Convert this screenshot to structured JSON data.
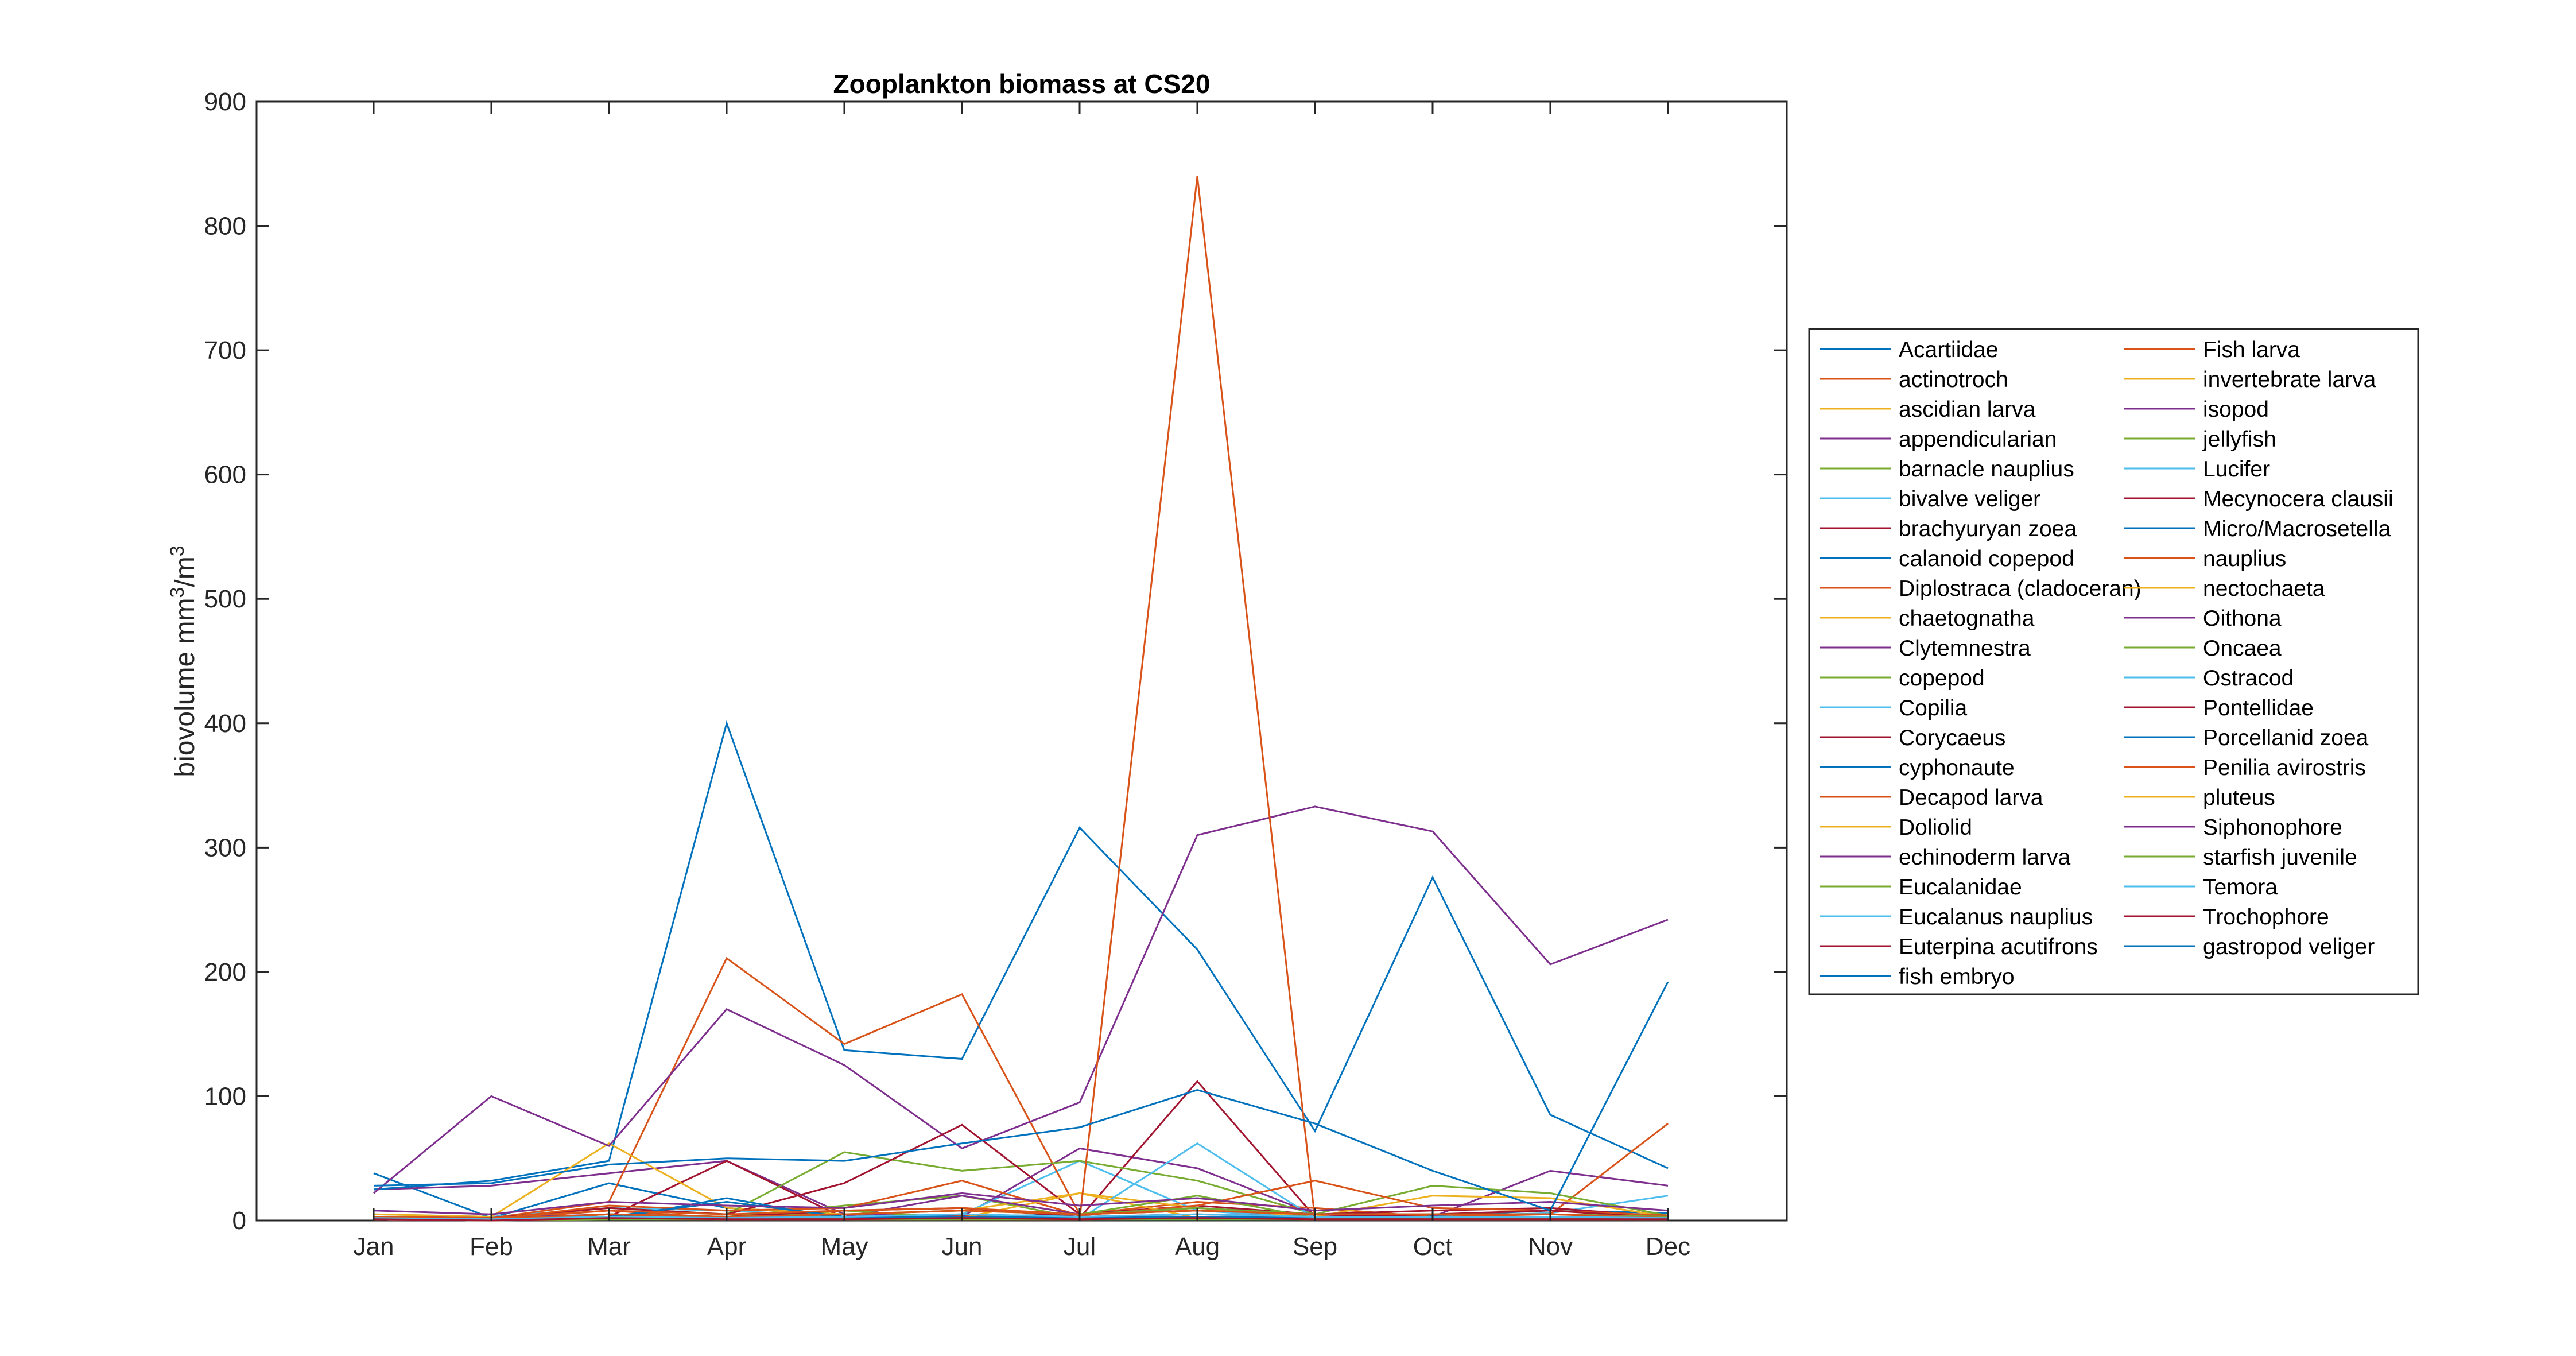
{
  "chart_data": {
    "type": "line",
    "title": "Zooplankton biomass at CS20",
    "xlabel": "",
    "ylabel": "biovolume mm",
    "ylabel_sup1": "3",
    "ylabel_mid": "/m",
    "ylabel_sup2": "3",
    "categories": [
      "Jan",
      "Feb",
      "Mar",
      "Apr",
      "May",
      "Jun",
      "Jul",
      "Aug",
      "Sep",
      "Oct",
      "Nov",
      "Dec"
    ],
    "ylim": [
      0,
      900
    ],
    "yticks": [
      0,
      100,
      200,
      300,
      400,
      500,
      600,
      700,
      800,
      900
    ],
    "grid": false,
    "legend_placement": "right",
    "series": [
      {
        "name": "Acartiidae",
        "color": "#0072BD",
        "values": [
          38,
          2,
          30,
          10,
          5,
          3,
          5,
          8,
          3,
          4,
          8,
          6
        ]
      },
      {
        "name": "actinotroch",
        "color": "#D95319",
        "values": [
          2,
          1,
          8,
          2,
          2,
          4,
          2,
          3,
          2,
          2,
          1,
          1
        ]
      },
      {
        "name": "ascidian larva",
        "color": "#EDB120",
        "values": [
          1,
          0,
          3,
          1,
          1,
          2,
          1,
          2,
          1,
          1,
          1,
          1
        ]
      },
      {
        "name": "appendicularian",
        "color": "#7E2F8E",
        "values": [
          25,
          28,
          38,
          48,
          5,
          3,
          58,
          42,
          5,
          3,
          40,
          28
        ]
      },
      {
        "name": "barnacle nauplius",
        "color": "#77AC30",
        "values": [
          2,
          1,
          5,
          3,
          12,
          20,
          2,
          3,
          2,
          2,
          3,
          2
        ]
      },
      {
        "name": "bivalve veliger",
        "color": "#4DBEEE",
        "values": [
          5,
          3,
          10,
          8,
          3,
          5,
          48,
          8,
          2,
          3,
          6,
          20
        ]
      },
      {
        "name": "brachyuryan zoea",
        "color": "#A2142F",
        "values": [
          2,
          1,
          3,
          48,
          2,
          3,
          2,
          112,
          3,
          2,
          3,
          2
        ]
      },
      {
        "name": "calanoid copepod",
        "color": "#0072BD",
        "values": [
          25,
          32,
          48,
          400,
          137,
          130,
          316,
          218,
          72,
          276,
          85,
          42
        ]
      },
      {
        "name": "Diplostraca (cladoceran)",
        "color": "#D95319",
        "values": [
          3,
          2,
          15,
          211,
          142,
          182,
          5,
          15,
          10,
          3,
          5,
          78
        ]
      },
      {
        "name": "chaetognatha",
        "color": "#EDB120",
        "values": [
          5,
          3,
          62,
          10,
          5,
          8,
          22,
          10,
          3,
          20,
          18,
          3
        ]
      },
      {
        "name": "Clytemnestra",
        "color": "#7E2F8E",
        "values": [
          22,
          100,
          60,
          170,
          125,
          58,
          95,
          310,
          333,
          313,
          206,
          242
        ]
      },
      {
        "name": "copepod",
        "color": "#77AC30",
        "values": [
          3,
          2,
          10,
          5,
          55,
          40,
          48,
          32,
          5,
          28,
          22,
          4
        ]
      },
      {
        "name": "Copilia",
        "color": "#4DBEEE",
        "values": [
          1,
          0,
          2,
          1,
          1,
          2,
          1,
          62,
          2,
          1,
          1,
          1
        ]
      },
      {
        "name": "Corycaeus",
        "color": "#A2142F",
        "values": [
          3,
          2,
          10,
          5,
          30,
          77,
          5,
          12,
          5,
          8,
          10,
          3
        ]
      },
      {
        "name": "cyphonaute",
        "color": "#0072BD",
        "values": [
          1,
          0,
          1,
          18,
          1,
          1,
          1,
          1,
          1,
          1,
          1,
          1
        ]
      },
      {
        "name": "Decapod larva",
        "color": "#D95319",
        "values": [
          2,
          1,
          12,
          8,
          10,
          32,
          4,
          12,
          32,
          10,
          8,
          4
        ]
      },
      {
        "name": "Doliolid",
        "color": "#EDB120",
        "values": [
          1,
          0,
          2,
          1,
          1,
          2,
          22,
          2,
          1,
          1,
          1,
          1
        ]
      },
      {
        "name": "echinoderm larva",
        "color": "#7E2F8E",
        "values": [
          3,
          2,
          5,
          3,
          3,
          20,
          5,
          10,
          5,
          5,
          5,
          3
        ]
      },
      {
        "name": "Eucalanidae",
        "color": "#77AC30",
        "values": [
          1,
          1,
          2,
          1,
          8,
          2,
          5,
          20,
          2,
          3,
          2,
          2
        ]
      },
      {
        "name": "Eucalanus nauplius",
        "color": "#4DBEEE",
        "values": [
          1,
          0,
          2,
          1,
          1,
          1,
          1,
          3,
          1,
          1,
          1,
          1
        ]
      },
      {
        "name": "Euterpina acutifrons",
        "color": "#A2142F",
        "values": [
          2,
          1,
          5,
          3,
          8,
          10,
          3,
          5,
          3,
          5,
          8,
          2
        ]
      },
      {
        "name": "fish embryo",
        "color": "#0072BD",
        "values": [
          2,
          1,
          3,
          15,
          3,
          2,
          2,
          3,
          2,
          2,
          3,
          2
        ]
      },
      {
        "name": "Fish larva",
        "color": "#D95319",
        "values": [
          1,
          1,
          2,
          1,
          1,
          1,
          1,
          840,
          1,
          1,
          1,
          1
        ]
      },
      {
        "name": "invertebrate larva",
        "color": "#EDB120",
        "values": [
          1,
          0,
          3,
          2,
          2,
          3,
          2,
          3,
          2,
          2,
          2,
          1
        ]
      },
      {
        "name": "isopod",
        "color": "#7E2F8E",
        "values": [
          1,
          0,
          1,
          1,
          1,
          2,
          1,
          2,
          1,
          1,
          1,
          1
        ]
      },
      {
        "name": "jellyfish",
        "color": "#77AC30",
        "values": [
          1,
          0,
          2,
          1,
          2,
          3,
          2,
          2,
          1,
          1,
          2,
          1
        ]
      },
      {
        "name": "Lucifer",
        "color": "#4DBEEE",
        "values": [
          1,
          0,
          2,
          1,
          1,
          2,
          2,
          3,
          1,
          2,
          2,
          1
        ]
      },
      {
        "name": "Mecynocera clausii",
        "color": "#A2142F",
        "values": [
          1,
          0,
          2,
          1,
          2,
          1,
          1,
          2,
          1,
          1,
          1,
          1
        ]
      },
      {
        "name": "Micro/Macrosetella",
        "color": "#0072BD",
        "values": [
          2,
          1,
          3,
          2,
          2,
          5,
          3,
          2,
          2,
          3,
          2,
          1
        ]
      },
      {
        "name": "nauplius",
        "color": "#D95319",
        "values": [
          3,
          2,
          8,
          5,
          8,
          10,
          5,
          8,
          5,
          5,
          5,
          3
        ]
      },
      {
        "name": "nectochaeta",
        "color": "#EDB120",
        "values": [
          1,
          0,
          2,
          1,
          1,
          2,
          1,
          2,
          1,
          1,
          1,
          1
        ]
      },
      {
        "name": "Oithona",
        "color": "#7E2F8E",
        "values": [
          8,
          5,
          15,
          12,
          10,
          22,
          12,
          18,
          8,
          12,
          15,
          8
        ]
      },
      {
        "name": "Oncaea",
        "color": "#77AC30",
        "values": [
          2,
          1,
          5,
          3,
          5,
          8,
          5,
          10,
          5,
          5,
          5,
          3
        ]
      },
      {
        "name": "Ostracod",
        "color": "#4DBEEE",
        "values": [
          1,
          0,
          2,
          1,
          1,
          2,
          1,
          2,
          1,
          1,
          1,
          1
        ]
      },
      {
        "name": "Pontellidae",
        "color": "#A2142F",
        "values": [
          1,
          0,
          2,
          1,
          2,
          3,
          2,
          3,
          2,
          2,
          2,
          1
        ]
      },
      {
        "name": "Porcellanid zoea",
        "color": "#0072BD",
        "values": [
          1,
          0,
          2,
          1,
          2,
          3,
          2,
          3,
          2,
          2,
          2,
          1
        ]
      },
      {
        "name": "Penilia avirostris",
        "color": "#D95319",
        "values": [
          2,
          1,
          5,
          3,
          5,
          8,
          5,
          8,
          5,
          5,
          5,
          2
        ]
      },
      {
        "name": "pluteus",
        "color": "#EDB120",
        "values": [
          1,
          0,
          2,
          1,
          1,
          2,
          1,
          2,
          1,
          1,
          1,
          1
        ]
      },
      {
        "name": "Siphonophore",
        "color": "#7E2F8E",
        "values": [
          1,
          0,
          2,
          1,
          1,
          2,
          1,
          2,
          1,
          1,
          1,
          1
        ]
      },
      {
        "name": "starfish juvenile",
        "color": "#77AC30",
        "values": [
          1,
          0,
          1,
          1,
          1,
          1,
          1,
          1,
          1,
          1,
          1,
          1
        ]
      },
      {
        "name": "Temora",
        "color": "#4DBEEE",
        "values": [
          2,
          1,
          3,
          2,
          3,
          5,
          3,
          5,
          3,
          3,
          3,
          2
        ]
      },
      {
        "name": "Trochophore",
        "color": "#A2142F",
        "values": [
          1,
          0,
          2,
          1,
          1,
          2,
          1,
          2,
          1,
          1,
          1,
          1
        ]
      },
      {
        "name": "gastropod veliger",
        "color": "#0072BD",
        "values": [
          28,
          30,
          45,
          50,
          48,
          62,
          75,
          105,
          78,
          40,
          8,
          192
        ]
      }
    ]
  }
}
